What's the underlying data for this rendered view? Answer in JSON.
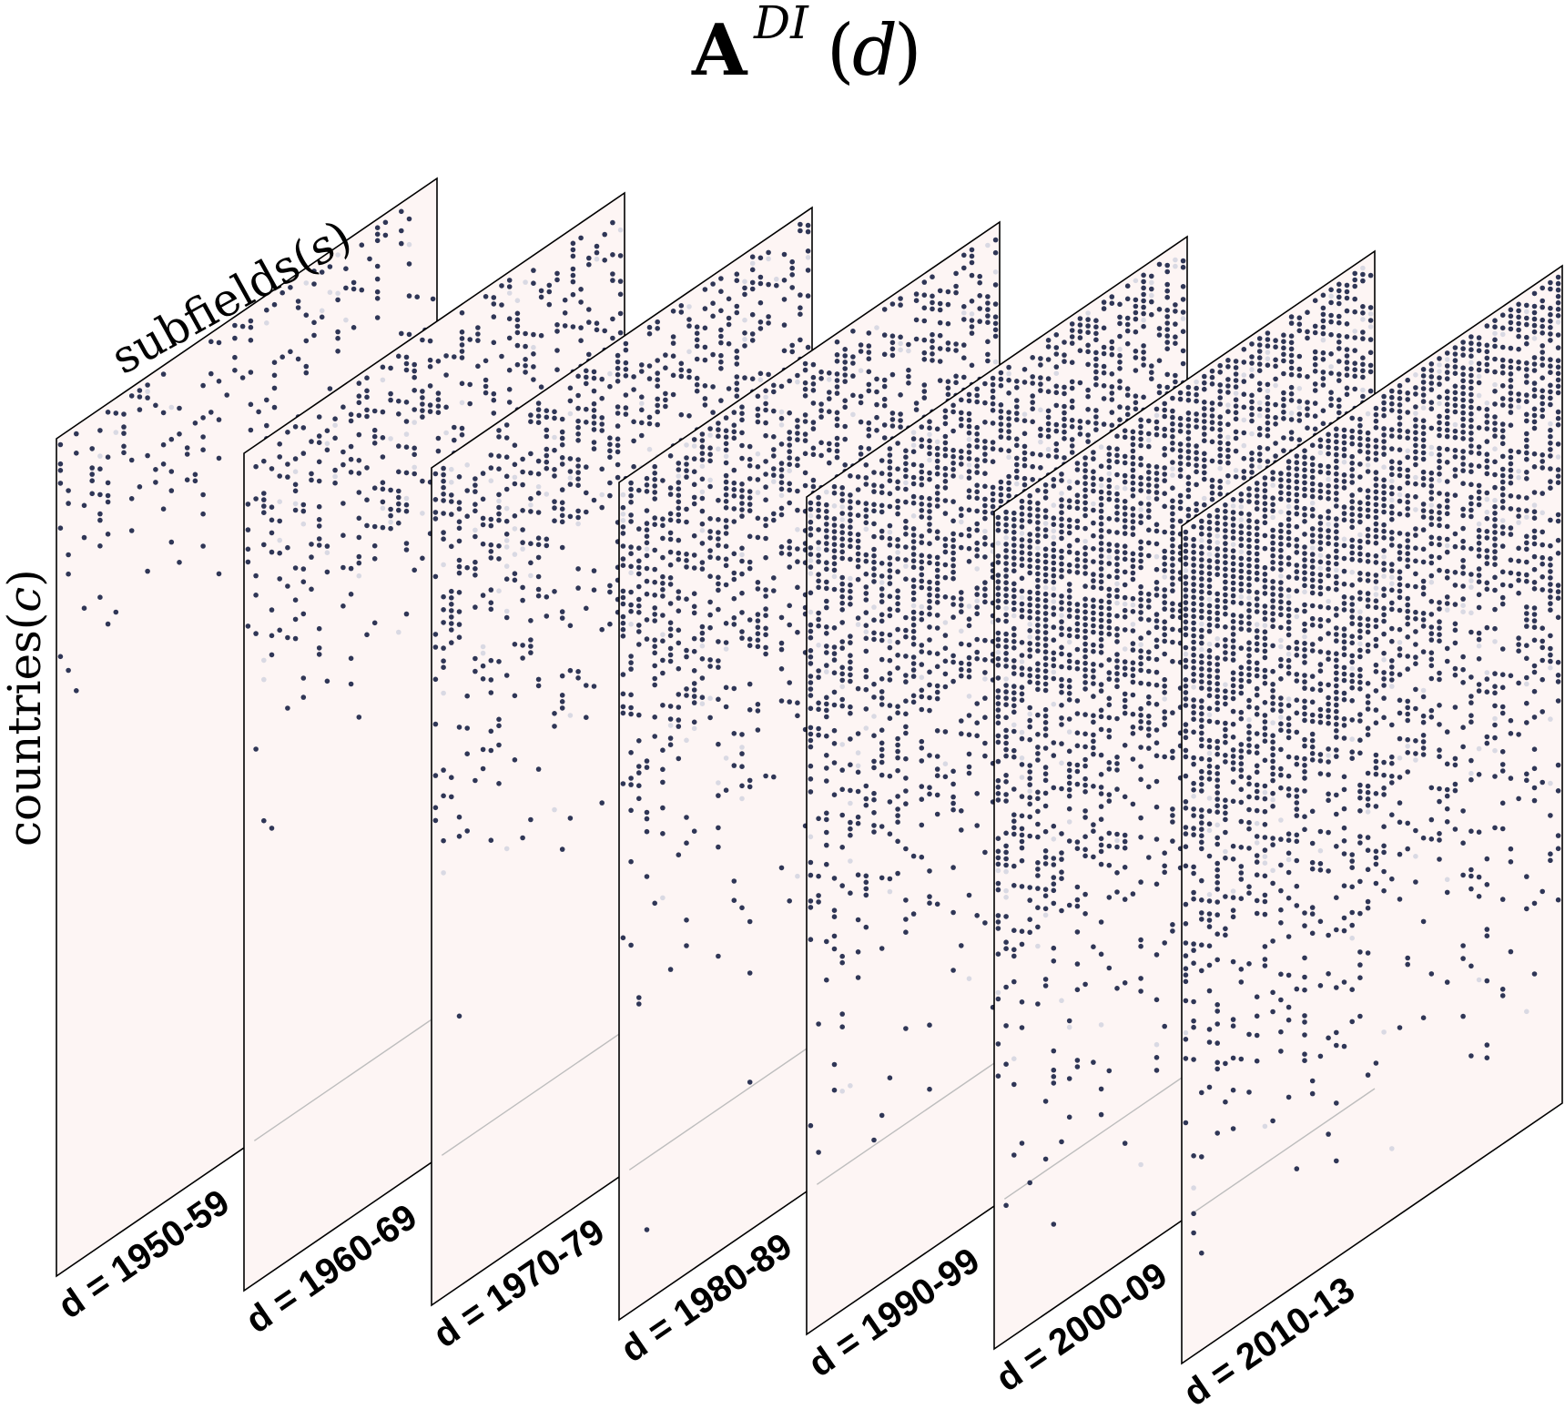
{
  "title": {
    "main": "A",
    "superscript": "DI",
    "open_paren": "(",
    "variable": "d",
    "close_paren": ")"
  },
  "axes": {
    "subfields_label": "subfields",
    "subfields_var": "s",
    "countries_label": "countries",
    "countries_var": "c"
  },
  "slices": [
    {
      "label": "d = 1950-59",
      "density": 0.1,
      "extent": 0.3
    },
    {
      "label": "d = 1960-69",
      "density": 0.16,
      "extent": 0.38
    },
    {
      "label": "d = 1970-79",
      "density": 0.22,
      "extent": 0.48
    },
    {
      "label": "d = 1980-89",
      "density": 0.28,
      "extent": 0.56
    },
    {
      "label": "d = 1990-99",
      "density": 0.34,
      "extent": 0.66
    },
    {
      "label": "d = 2000-09",
      "density": 0.4,
      "extent": 0.74
    },
    {
      "label": "d = 2010-13",
      "density": 0.44,
      "extent": 0.76
    }
  ],
  "colors": {
    "plane_fill": "#fdf5f4",
    "dot": "#2f3656",
    "dot_ghost": "#d9d9e3",
    "edge": "#000000",
    "hidden_edge": "#bdbdbd"
  }
}
